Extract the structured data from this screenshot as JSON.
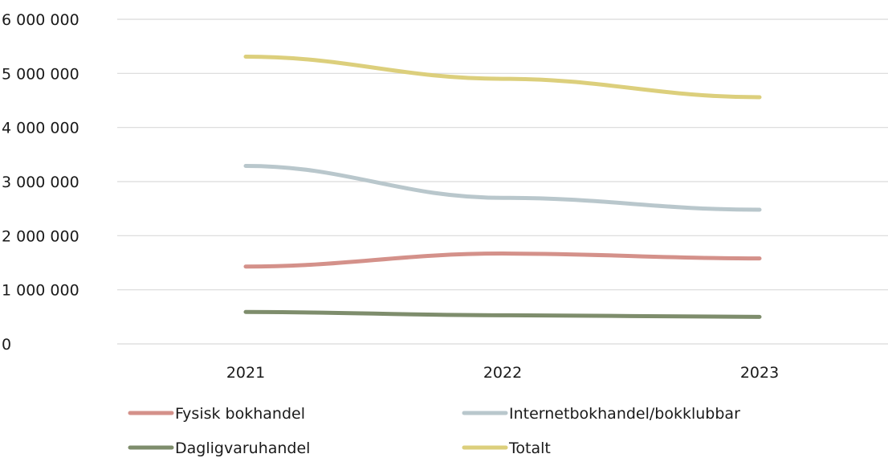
{
  "chart_data": {
    "type": "line",
    "title": "",
    "xlabel": "",
    "ylabel": "",
    "categories": [
      "2021",
      "2022",
      "2023"
    ],
    "ylim": [
      0,
      6000000
    ],
    "yticks": [
      0,
      1000000,
      2000000,
      3000000,
      4000000,
      5000000,
      6000000
    ],
    "ytick_labels": [
      "0",
      "1 000 000",
      "2 000 000",
      "3 000 000",
      "4 000 000",
      "5 000 000",
      "6 000 000"
    ],
    "grid": true,
    "legend_position": "bottom",
    "series": [
      {
        "name": "Fysisk bokhandel",
        "values": [
          1430000,
          1670000,
          1580000
        ],
        "color": "#d4918a"
      },
      {
        "name": "Internetbokhandel/bokklubbar",
        "values": [
          3290000,
          2700000,
          2480000
        ],
        "color": "#b9c7cc"
      },
      {
        "name": "Dagligvaruhandel",
        "values": [
          590000,
          530000,
          500000
        ],
        "color": "#7e8d6c"
      },
      {
        "name": "Totalt",
        "values": [
          5310000,
          4900000,
          4560000
        ],
        "color": "#dccf7c"
      }
    ]
  }
}
